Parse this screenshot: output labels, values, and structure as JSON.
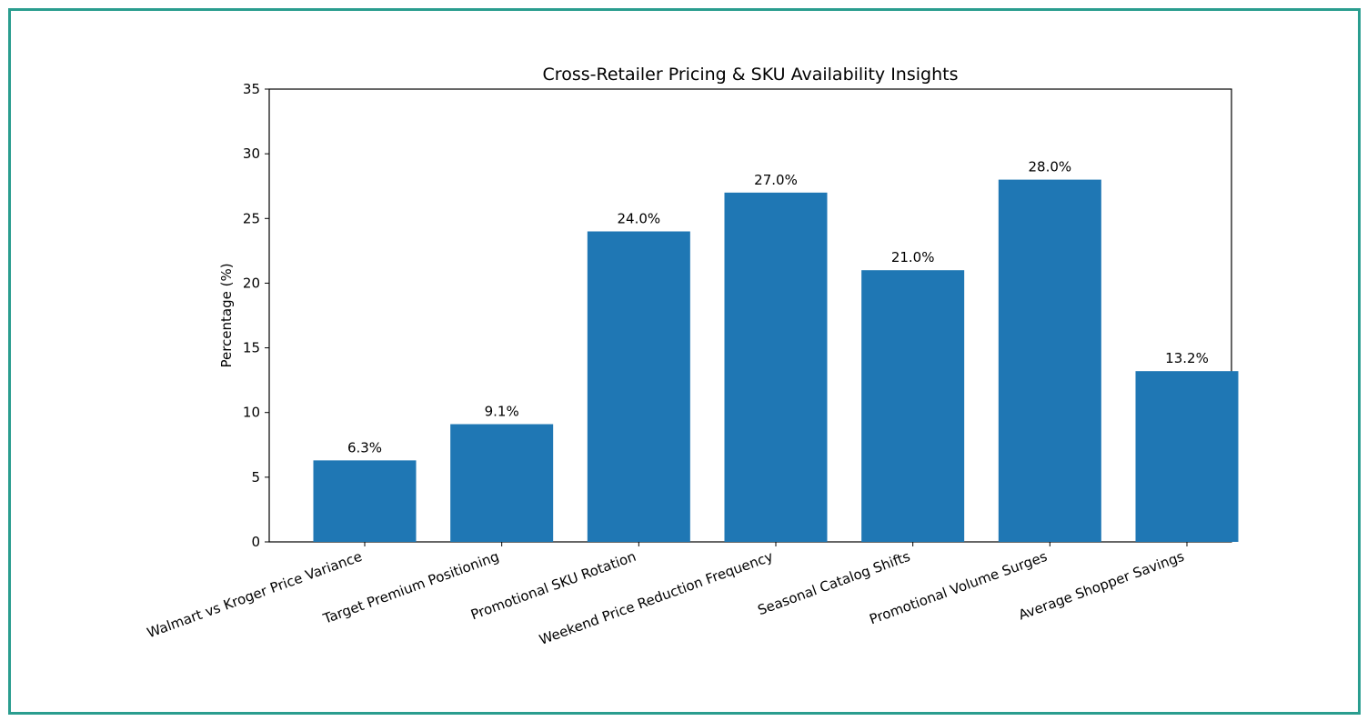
{
  "chart_data": {
    "type": "bar",
    "title": "Cross-Retailer Pricing & SKU Availability Insights",
    "xlabel": "",
    "ylabel": "Percentage (%)",
    "ylim": [
      0,
      35
    ],
    "yticks": [
      0,
      5,
      10,
      15,
      20,
      25,
      30,
      35
    ],
    "categories": [
      "Walmart vs Kroger Price Variance",
      "Target Premium Positioning",
      "Promotional SKU Rotation",
      "Weekend Price Reduction Frequency",
      "Seasonal Catalog Shifts",
      "Promotional Volume Surges",
      "Average Shopper Savings"
    ],
    "values": [
      6.3,
      9.1,
      24.0,
      27.0,
      21.0,
      28.0,
      13.2
    ],
    "data_labels": [
      "6.3%",
      "9.1%",
      "24.0%",
      "27.0%",
      "21.0%",
      "28.0%",
      "13.2%"
    ],
    "bar_color": "#1f77b4",
    "grid": false,
    "legend": "none"
  },
  "frame_color": "#2a9d8f"
}
